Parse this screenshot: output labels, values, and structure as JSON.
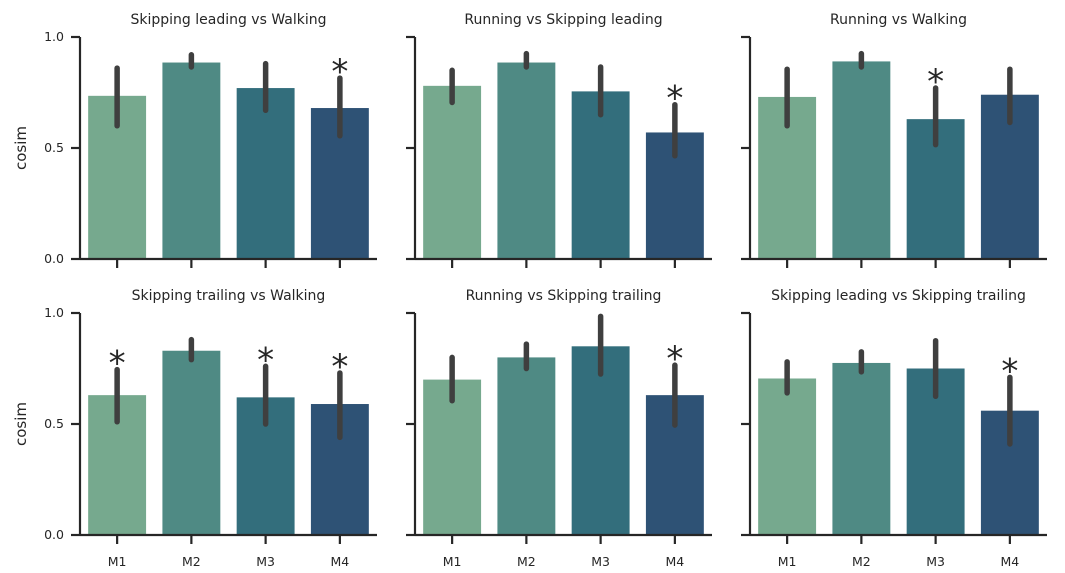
{
  "chart_data": {
    "type": "bar",
    "categories": [
      "M1",
      "M2",
      "M3",
      "M4"
    ],
    "ylabel": "cosim",
    "ylim": [
      0,
      1.0
    ],
    "yticks": [
      "0.0",
      "0.5",
      "1.0"
    ],
    "colors": [
      "#76a98e",
      "#4f8a84",
      "#336e7c",
      "#2e5275"
    ],
    "significance_marker": "*",
    "panels": [
      {
        "title": "Skipping leading vs Walking",
        "values": [
          0.735,
          0.885,
          0.77,
          0.68
        ],
        "err_low": [
          0.6,
          0.865,
          0.67,
          0.555
        ],
        "err_high": [
          0.86,
          0.92,
          0.88,
          0.815
        ],
        "significant": [
          false,
          false,
          false,
          true
        ]
      },
      {
        "title": "Running vs Skipping leading",
        "values": [
          0.78,
          0.885,
          0.755,
          0.57
        ],
        "err_low": [
          0.705,
          0.865,
          0.65,
          0.465
        ],
        "err_high": [
          0.85,
          0.925,
          0.865,
          0.695
        ],
        "significant": [
          false,
          false,
          false,
          true
        ]
      },
      {
        "title": "Running vs Walking",
        "values": [
          0.73,
          0.89,
          0.63,
          0.74
        ],
        "err_low": [
          0.6,
          0.865,
          0.515,
          0.615
        ],
        "err_high": [
          0.855,
          0.925,
          0.77,
          0.855
        ],
        "significant": [
          false,
          false,
          true,
          false
        ]
      },
      {
        "title": "Skipping trailing vs Walking",
        "values": [
          0.63,
          0.83,
          0.62,
          0.59
        ],
        "err_low": [
          0.51,
          0.79,
          0.5,
          0.44
        ],
        "err_high": [
          0.745,
          0.88,
          0.76,
          0.73
        ],
        "significant": [
          true,
          false,
          true,
          true
        ]
      },
      {
        "title": "Running vs Skipping trailing",
        "values": [
          0.7,
          0.8,
          0.85,
          0.63
        ],
        "err_low": [
          0.605,
          0.75,
          0.725,
          0.495
        ],
        "err_high": [
          0.8,
          0.86,
          0.985,
          0.765
        ],
        "significant": [
          false,
          false,
          false,
          true
        ]
      },
      {
        "title": "Skipping leading vs Skipping trailing",
        "values": [
          0.705,
          0.775,
          0.75,
          0.56
        ],
        "err_low": [
          0.64,
          0.735,
          0.625,
          0.41
        ],
        "err_high": [
          0.78,
          0.825,
          0.875,
          0.71
        ],
        "significant": [
          false,
          false,
          false,
          true
        ]
      }
    ]
  }
}
